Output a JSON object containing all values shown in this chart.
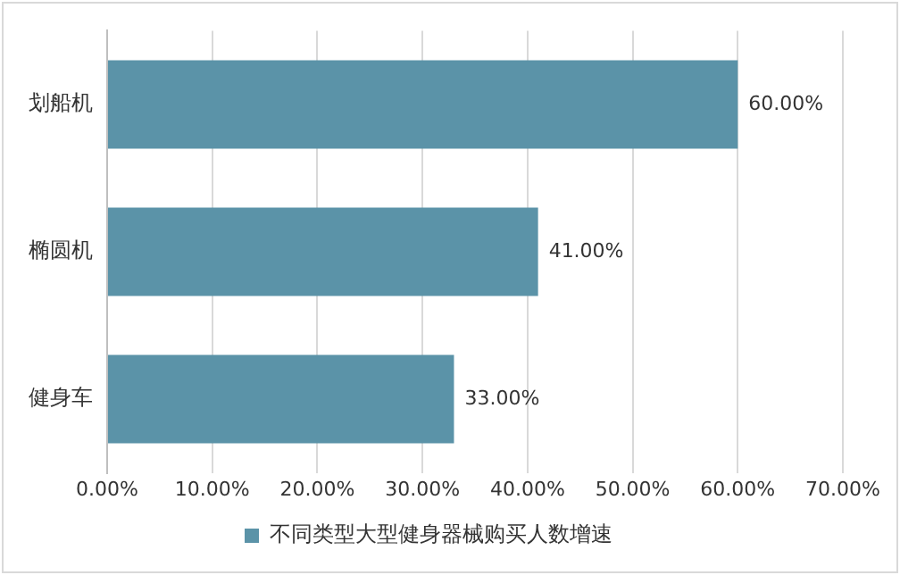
{
  "chart_data": {
    "type": "bar",
    "orientation": "horizontal",
    "categories": [
      "划船机",
      "椭圆机",
      "健身车"
    ],
    "series": [
      {
        "name": "不同类型大型健身器械购买人数增速",
        "color": "#5b93a8",
        "values": [
          60,
          41,
          33
        ],
        "value_labels": [
          "60.00%",
          "41.00%",
          "33.00%"
        ]
      }
    ],
    "xlim": [
      0,
      70
    ],
    "xticks": [
      {
        "value": 0,
        "label": "0.00%"
      },
      {
        "value": 10,
        "label": "10.00%"
      },
      {
        "value": 20,
        "label": "20.00%"
      },
      {
        "value": 30,
        "label": "30.00%"
      },
      {
        "value": 40,
        "label": "40.00%"
      },
      {
        "value": 50,
        "label": "50.00%"
      },
      {
        "value": 60,
        "label": "60.00%"
      },
      {
        "value": 70,
        "label": "70.00%"
      }
    ],
    "grid": "x",
    "legend": "bottom"
  }
}
